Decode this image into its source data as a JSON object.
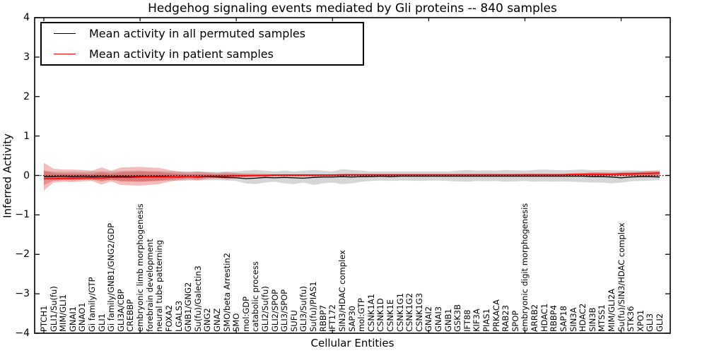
{
  "chart_data": {
    "type": "line",
    "title": "Hedgehog signaling events mediated by Gli proteins -- 840 samples",
    "xlabel": "Cellular Entities",
    "ylabel": "Inferred Activity",
    "ylim": [
      -4,
      4
    ],
    "grid": false,
    "legend_position": "upper left",
    "yticks": {
      "values": [
        4,
        3,
        2,
        1,
        0,
        -1,
        -2,
        -3,
        -4
      ],
      "labels": [
        "4",
        "3",
        "2",
        "1",
        "0",
        "−1",
        "−2",
        "−3",
        "−4"
      ]
    },
    "categories": [
      "PTCH1",
      "GLI1/Su(fu)",
      "MIM/GLI1",
      "GNAI1",
      "GNAO1",
      "Gi family/GTP",
      "GLI1",
      "Gi family/GNB1/GNG2/GDP",
      "GLI3A/CBP",
      "CREBBP",
      "embryonic limb morphogenesis",
      "forebrain development",
      "neural tube patterning",
      "FOXA2",
      "LGALS3",
      "GNB1/GNG2",
      "Su(fu)/Galectin3",
      "GNG2",
      "GNAZ",
      "SMO/beta Arrestin2",
      "SMO",
      "mol:GDP",
      "catabolic process",
      "GLI2/Su(fu)",
      "GLI2/SPOP",
      "GLI3/SPOP",
      "SUFU",
      "GLI3/Su(fu)",
      "Su(fu)/PIAS1",
      "RBBP7",
      "IFT172",
      "SIN3/HDAC complex",
      "SAP30",
      "mol:GTP",
      "CSNK1A1",
      "CSNK1D",
      "CSNK1E",
      "CSNK1G1",
      "CSNK1G2",
      "CSNK1G3",
      "GNAI2",
      "GNAI3",
      "GNB1",
      "GSK3B",
      "IFT88",
      "KIF3A",
      "PIAS1",
      "PRKACA",
      "RAB23",
      "SPOP",
      "embryonic digit morphogenesis",
      "ARRB2",
      "HDAC1",
      "RBBP4",
      "SAP18",
      "SIN3A",
      "HDAC2",
      "SIN3B",
      "MTSS1",
      "MIM/GLI2A",
      "Su(fu)/SIN3/HDAC complex",
      "STK36",
      "XPO1",
      "GLI3",
      "GLI2"
    ],
    "series": [
      {
        "name": "Mean activity in all permuted samples",
        "color": "#000000",
        "values": [
          -0.03,
          -0.03,
          -0.02,
          -0.03,
          -0.02,
          -0.03,
          -0.02,
          -0.03,
          -0.02,
          -0.03,
          -0.02,
          -0.03,
          -0.02,
          -0.03,
          -0.04,
          -0.03,
          -0.04,
          -0.03,
          -0.04,
          -0.05,
          -0.06,
          -0.08,
          -0.07,
          -0.05,
          -0.06,
          -0.05,
          -0.06,
          -0.07,
          -0.05,
          -0.04,
          -0.04,
          -0.03,
          -0.04,
          -0.03,
          -0.03,
          -0.02,
          -0.03,
          -0.02,
          -0.02,
          -0.02,
          -0.02,
          -0.02,
          -0.02,
          -0.02,
          -0.02,
          -0.02,
          -0.02,
          -0.02,
          -0.02,
          -0.02,
          -0.02,
          -0.02,
          -0.02,
          -0.02,
          -0.02,
          -0.02,
          -0.02,
          -0.03,
          -0.03,
          -0.04,
          -0.06,
          -0.04,
          -0.03,
          -0.03,
          -0.04
        ]
      },
      {
        "name": "Mean activity in patient samples",
        "color": "#ff0000",
        "values": [
          -0.08,
          -0.08,
          -0.07,
          -0.07,
          -0.06,
          -0.06,
          -0.06,
          -0.05,
          -0.05,
          -0.05,
          -0.04,
          -0.04,
          -0.04,
          -0.04,
          -0.03,
          -0.03,
          -0.03,
          -0.02,
          -0.02,
          -0.02,
          -0.01,
          -0.01,
          0,
          0,
          0.01,
          0.01,
          0.01,
          0.01,
          0.01,
          0.01,
          0.01,
          0.02,
          0.02,
          0.02,
          0.02,
          0.02,
          0.02,
          0.02,
          0.02,
          0.02,
          0.02,
          0.02,
          0.02,
          0.02,
          0.02,
          0.02,
          0.02,
          0.02,
          0.02,
          0.02,
          0.02,
          0.02,
          0.02,
          0.02,
          0.02,
          0.03,
          0.03,
          0.03,
          0.03,
          0.03,
          0.04,
          0.04,
          0.05,
          0.05,
          0.06
        ]
      }
    ],
    "bands": [
      {
        "name": "permuted-samples-range",
        "color": "#999999",
        "opacity": 0.4,
        "upper": [
          0.1,
          0.1,
          0.09,
          0.1,
          0.09,
          0.1,
          0.1,
          0.1,
          0.11,
          0.12,
          0.12,
          0.11,
          0.11,
          0.1,
          0.1,
          0.1,
          0.1,
          0.09,
          0.09,
          0.1,
          0.1,
          0.12,
          0.14,
          0.12,
          0.1,
          0.12,
          0.1,
          0.12,
          0.14,
          0.12,
          0.1,
          0.16,
          0.14,
          0.12,
          0.1,
          0.1,
          0.1,
          0.1,
          0.1,
          0.1,
          0.1,
          0.1,
          0.1,
          0.12,
          0.14,
          0.12,
          0.13,
          0.12,
          0.14,
          0.13,
          0.12,
          0.14,
          0.15,
          0.14,
          0.13,
          0.14,
          0.15,
          0.13,
          0.14,
          0.13,
          0.12,
          0.13,
          0.12,
          0.11,
          0.1
        ],
        "lower": [
          -0.12,
          -0.12,
          -0.11,
          -0.12,
          -0.11,
          -0.12,
          -0.11,
          -0.12,
          -0.13,
          -0.14,
          -0.15,
          -0.14,
          -0.13,
          -0.13,
          -0.14,
          -0.13,
          -0.13,
          -0.12,
          -0.12,
          -0.13,
          -0.14,
          -0.2,
          -0.22,
          -0.18,
          -0.16,
          -0.2,
          -0.22,
          -0.18,
          -0.24,
          -0.2,
          -0.18,
          -0.22,
          -0.2,
          -0.16,
          -0.14,
          -0.13,
          -0.14,
          -0.13,
          -0.13,
          -0.14,
          -0.13,
          -0.13,
          -0.14,
          -0.15,
          -0.16,
          -0.14,
          -0.15,
          -0.14,
          -0.16,
          -0.15,
          -0.14,
          -0.16,
          -0.15,
          -0.16,
          -0.15,
          -0.16,
          -0.17,
          -0.18,
          -0.18,
          -0.2,
          -0.18,
          -0.15,
          -0.14,
          -0.13,
          -0.12
        ]
      },
      {
        "name": "patient-samples-range",
        "color": "#dd2222",
        "opacity": 0.3,
        "inner_band_scale": 0.55,
        "upper": [
          0.32,
          0.17,
          0.15,
          0.15,
          0.14,
          0.12,
          0.2,
          0.12,
          0.2,
          0.21,
          0.22,
          0.2,
          0.19,
          0.14,
          0.1,
          0.08,
          0.1,
          0.08,
          0.06,
          0.08,
          0.06,
          0.05,
          0.04,
          0.04,
          0.03,
          0.03,
          0.03,
          0.03,
          0.03,
          0.03,
          0.03,
          0.03,
          0.03,
          0.03,
          0.03,
          0.03,
          0.03,
          0.03,
          0.03,
          0.03,
          0.03,
          0.03,
          0.03,
          0.03,
          0.03,
          0.03,
          0.03,
          0.03,
          0.03,
          0.03,
          0.04,
          0.04,
          0.04,
          0.04,
          0.04,
          0.05,
          0.06,
          0.08,
          0.08,
          0.07,
          0.08,
          0.09,
          0.1,
          0.12,
          0.13
        ],
        "lower": [
          -0.38,
          -0.18,
          -0.16,
          -0.17,
          -0.15,
          -0.14,
          -0.23,
          -0.15,
          -0.24,
          -0.25,
          -0.26,
          -0.24,
          -0.22,
          -0.16,
          -0.12,
          -0.1,
          -0.12,
          -0.09,
          -0.07,
          -0.1,
          -0.06,
          -0.05,
          -0.04,
          -0.04,
          -0.03,
          -0.03,
          -0.03,
          -0.03,
          -0.03,
          -0.02,
          -0.02,
          -0.02,
          -0.02,
          -0.02,
          -0.02,
          -0.02,
          -0.02,
          -0.02,
          -0.02,
          -0.02,
          -0.02,
          -0.02,
          -0.02,
          -0.02,
          -0.02,
          -0.02,
          -0.02,
          -0.02,
          -0.02,
          -0.02,
          -0.02,
          -0.02,
          -0.02,
          -0.02,
          -0.02,
          -0.02,
          -0.02,
          -0.02,
          -0.02,
          -0.02,
          -0.03,
          -0.03,
          -0.03,
          -0.04,
          -0.05
        ]
      }
    ],
    "zero_line": {
      "value": 0,
      "color": "#000000",
      "style": "dotted"
    }
  }
}
